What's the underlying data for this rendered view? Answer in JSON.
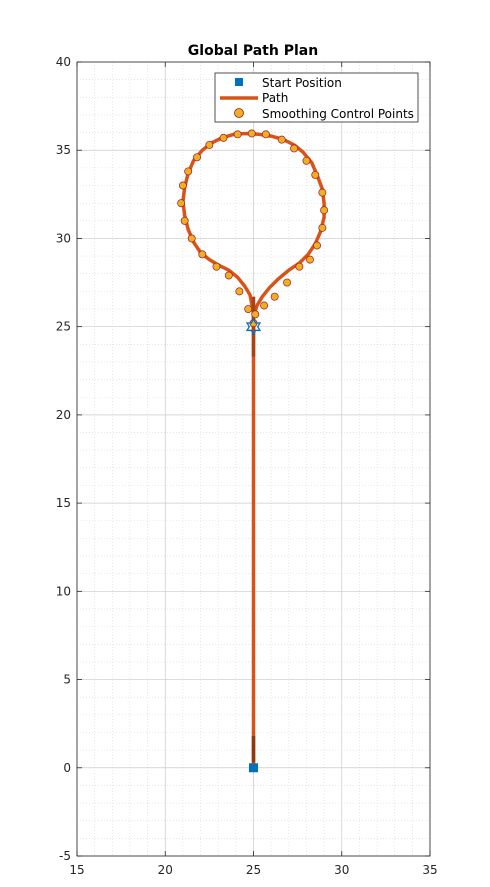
{
  "chart_data": {
    "type": "line",
    "title": "Global Path Plan",
    "xlabel": "",
    "ylabel": "",
    "xlim": [
      15,
      35
    ],
    "ylim": [
      -5,
      40
    ],
    "xticks": [
      15,
      20,
      25,
      30,
      35
    ],
    "yticks": [
      -5,
      0,
      5,
      10,
      15,
      20,
      25,
      30,
      35,
      40
    ],
    "grid": true,
    "minor_grid": true,
    "legend_position": "top-right",
    "legend": [
      "Start Position",
      "Path",
      "Smoothing Control Points"
    ],
    "series": [
      {
        "name": "Start Position",
        "kind": "marker-square",
        "color": "#0072BD",
        "x": [
          25
        ],
        "y": [
          0
        ]
      },
      {
        "name": "Path",
        "kind": "line",
        "color": "#D95319",
        "x": [
          25,
          25,
          25,
          25,
          24.9,
          24.8,
          24.5,
          24.1,
          23.6,
          23.0,
          22.5,
          22.0,
          21.6,
          21.3,
          21.1,
          21.0,
          21.1,
          21.3,
          21.6,
          22.1,
          22.6,
          23.2,
          23.9,
          24.6,
          25.3,
          26.0,
          26.7,
          27.3,
          27.8,
          28.3,
          28.6,
          28.9,
          29.0,
          29.0,
          28.8,
          28.5,
          28.1,
          27.6,
          27.0,
          26.4,
          25.9,
          25.5,
          25.2,
          25.0,
          25.0
        ],
        "y": [
          0,
          10,
          20,
          25.8,
          26.3,
          26.8,
          27.3,
          27.8,
          28.2,
          28.5,
          28.8,
          29.2,
          29.8,
          30.5,
          31.3,
          32.1,
          32.9,
          33.7,
          34.4,
          35.0,
          35.4,
          35.7,
          35.9,
          35.95,
          35.9,
          35.8,
          35.6,
          35.3,
          34.9,
          34.3,
          33.6,
          32.8,
          32.0,
          31.2,
          30.4,
          29.7,
          29.1,
          28.6,
          28.2,
          27.7,
          27.2,
          26.7,
          26.2,
          25.6,
          25.0
        ]
      },
      {
        "name": "Smoothing Control Points",
        "kind": "marker-circle",
        "color": "#EDB120",
        "x": [
          25.0,
          24.7,
          24.2,
          23.6,
          22.9,
          22.1,
          21.5,
          21.1,
          20.9,
          21.0,
          21.3,
          21.8,
          22.5,
          23.3,
          24.1,
          24.9,
          25.7,
          26.6,
          27.3,
          28.0,
          28.5,
          28.9,
          29.0,
          28.9,
          28.6,
          28.2,
          27.6,
          26.9,
          26.2,
          25.6,
          25.1,
          25.0
        ],
        "y": [
          25.2,
          26.0,
          27.0,
          27.9,
          28.4,
          29.1,
          30.0,
          31.0,
          32.0,
          33.0,
          33.8,
          34.6,
          35.3,
          35.7,
          35.9,
          35.95,
          35.9,
          35.6,
          35.1,
          34.4,
          33.6,
          32.6,
          31.6,
          30.6,
          29.6,
          28.8,
          28.4,
          27.5,
          26.7,
          26.2,
          25.7,
          25.2
        ]
      },
      {
        "name": "Start Marker Overlay",
        "kind": "marker-hexagram",
        "color": "#0072BD",
        "x": [
          25
        ],
        "y": [
          25
        ]
      }
    ]
  }
}
